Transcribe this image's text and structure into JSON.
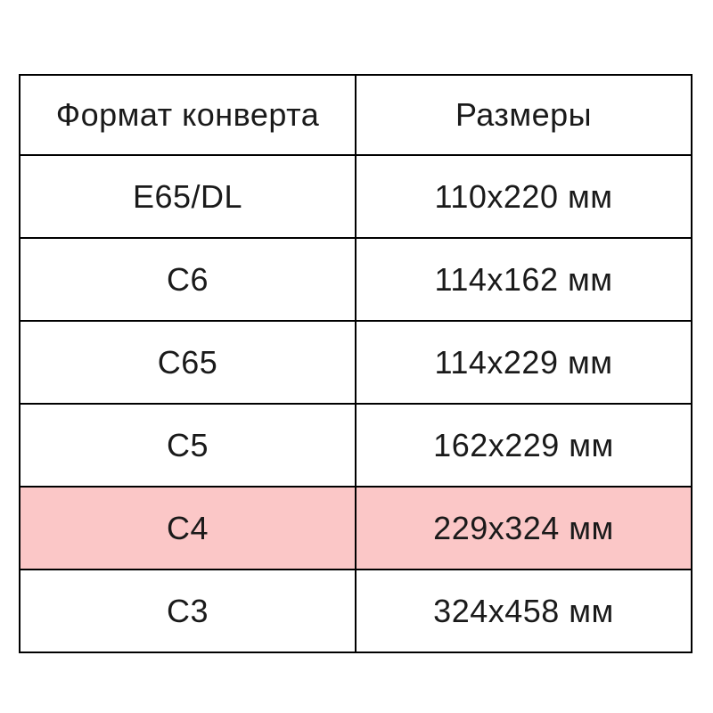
{
  "chart_data": {
    "type": "table",
    "columns": [
      "Формат конверта",
      "Размеры"
    ],
    "rows": [
      [
        "E65/DL",
        "110x220 мм"
      ],
      [
        "C6",
        "114x162 мм"
      ],
      [
        "C65",
        "114x229 мм"
      ],
      [
        "C5",
        "162x229 мм"
      ],
      [
        "C4",
        "229x324 мм"
      ],
      [
        "C3",
        "324x458 мм"
      ]
    ],
    "highlighted_row": "C4",
    "highlight_color": "#fbc7c7",
    "border_color": "#000000",
    "text_color": "#1a1a1a",
    "background_color": "#ffffff"
  }
}
